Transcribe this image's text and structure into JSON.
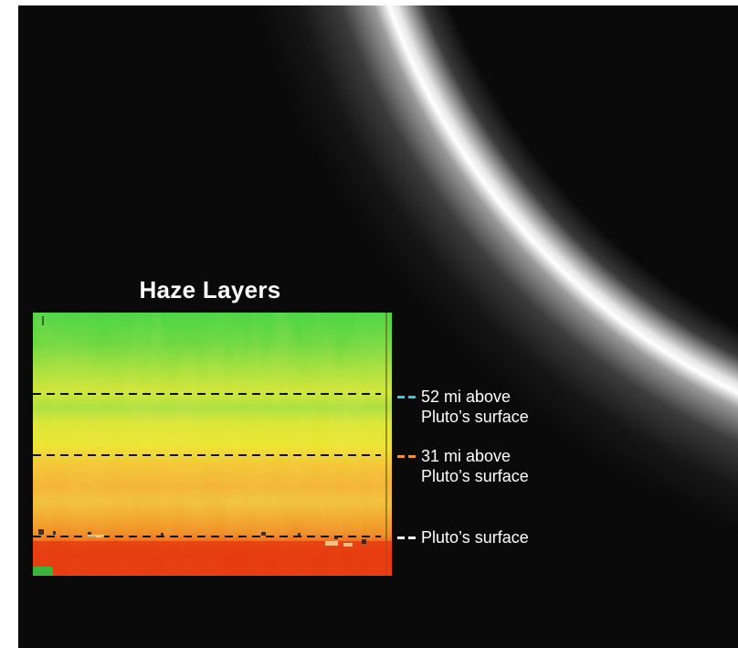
{
  "title": "Haze Layers",
  "legend": [
    {
      "line1": "52 mi above",
      "line2": "Pluto’s surface",
      "color": "#39c8d8"
    },
    {
      "line1": "31 mi above",
      "line2": "Pluto’s surface",
      "color": "#f0952a"
    },
    {
      "line1": "Pluto’s surface",
      "line2": "",
      "color": "#ffffff"
    }
  ],
  "colors": {
    "background": "#0a0a0a",
    "heat_top": "#4fd64a",
    "heat_mid": "#e8e830",
    "heat_low": "#f2a030",
    "heat_bottom": "#e83a14"
  }
}
